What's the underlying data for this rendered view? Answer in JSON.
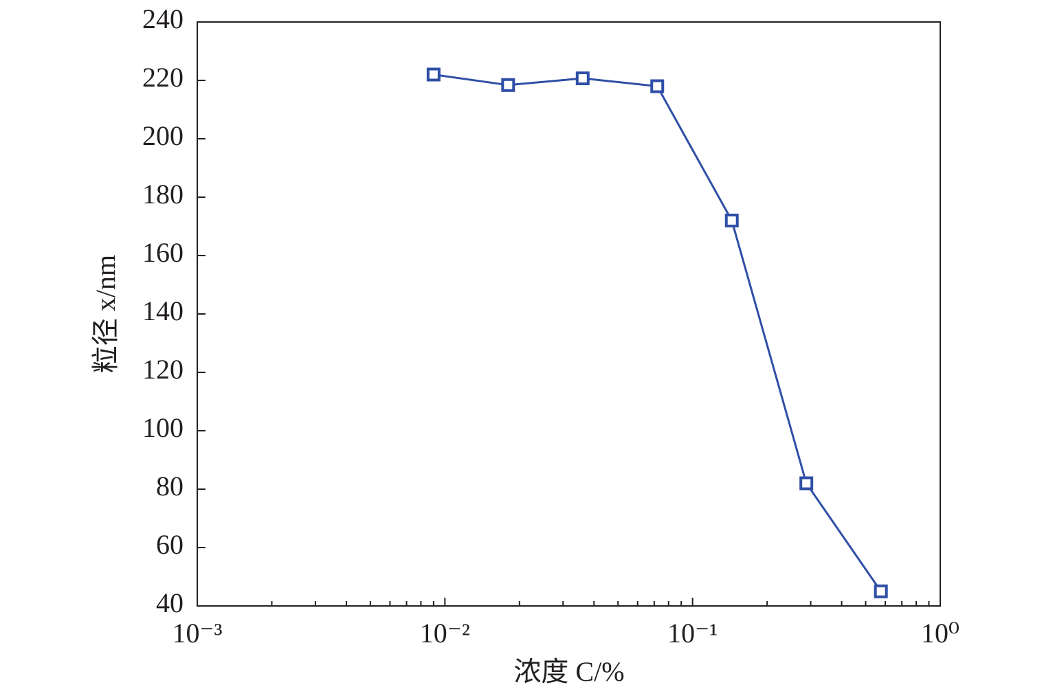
{
  "chart_data": {
    "type": "line",
    "x_label": "浓度 C/%",
    "y_label": "粒径 x/nm",
    "x": [
      0.009,
      0.018,
      0.036,
      0.072,
      0.144,
      0.288,
      0.576
    ],
    "series": [
      {
        "name": "粒径",
        "color": "#2f4fa6",
        "values": [
          222,
          218.4,
          220.7,
          218,
          172,
          82,
          45
        ]
      }
    ],
    "xlim": [
      0.001,
      1
    ],
    "xscale": "log",
    "xticks": [
      {
        "value": 0.001,
        "label": "10⁻³"
      },
      {
        "value": 0.01,
        "label": "10⁻²"
      },
      {
        "value": 0.1,
        "label": "10⁻¹"
      },
      {
        "value": 1,
        "label": "10⁰"
      }
    ],
    "ylim": [
      40,
      240
    ],
    "yticks": [
      40,
      60,
      80,
      100,
      120,
      140,
      160,
      180,
      200,
      220,
      240
    ],
    "grid": false
  }
}
